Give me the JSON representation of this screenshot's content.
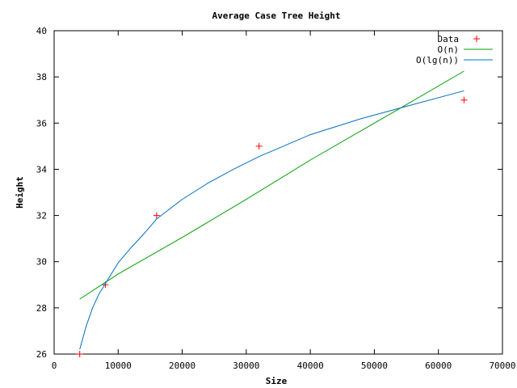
{
  "chart_data": {
    "type": "line",
    "title": "Average Case Tree Height",
    "xlabel": "Size",
    "ylabel": "Height",
    "xlim": [
      0,
      70000
    ],
    "ylim": [
      26,
      40
    ],
    "x_ticks": [
      0,
      10000,
      20000,
      30000,
      40000,
      50000,
      60000,
      70000
    ],
    "y_ticks": [
      26,
      28,
      30,
      32,
      34,
      36,
      38,
      40
    ],
    "grid": false,
    "legend_position": "top-right",
    "colors": {
      "data": "#ff0000",
      "linear": "#00a000",
      "log": "#0070c0"
    },
    "series": [
      {
        "name": "Data",
        "kind": "points",
        "x": [
          4000,
          8000,
          16000,
          32000,
          64000
        ],
        "y": [
          26,
          29,
          32,
          35,
          37
        ]
      },
      {
        "name": "O(n)",
        "kind": "line",
        "x": [
          4000,
          10000,
          20000,
          30000,
          40000,
          50000,
          55000,
          64000
        ],
        "y": [
          28.38,
          29.47,
          31.05,
          32.7,
          34.4,
          36.0,
          36.8,
          38.25
        ]
      },
      {
        "name": "O(lg(n))",
        "kind": "line",
        "x": [
          4000,
          5000,
          6000,
          7000,
          8000,
          10000,
          12000,
          14000,
          16000,
          20000,
          24000,
          28000,
          32000,
          40000,
          48000,
          56000,
          64000
        ],
        "y": [
          26.2,
          27.2,
          28.0,
          28.6,
          29.05,
          29.95,
          30.6,
          31.2,
          31.85,
          32.7,
          33.4,
          34.0,
          34.55,
          35.5,
          36.2,
          36.8,
          37.4
        ]
      }
    ]
  }
}
